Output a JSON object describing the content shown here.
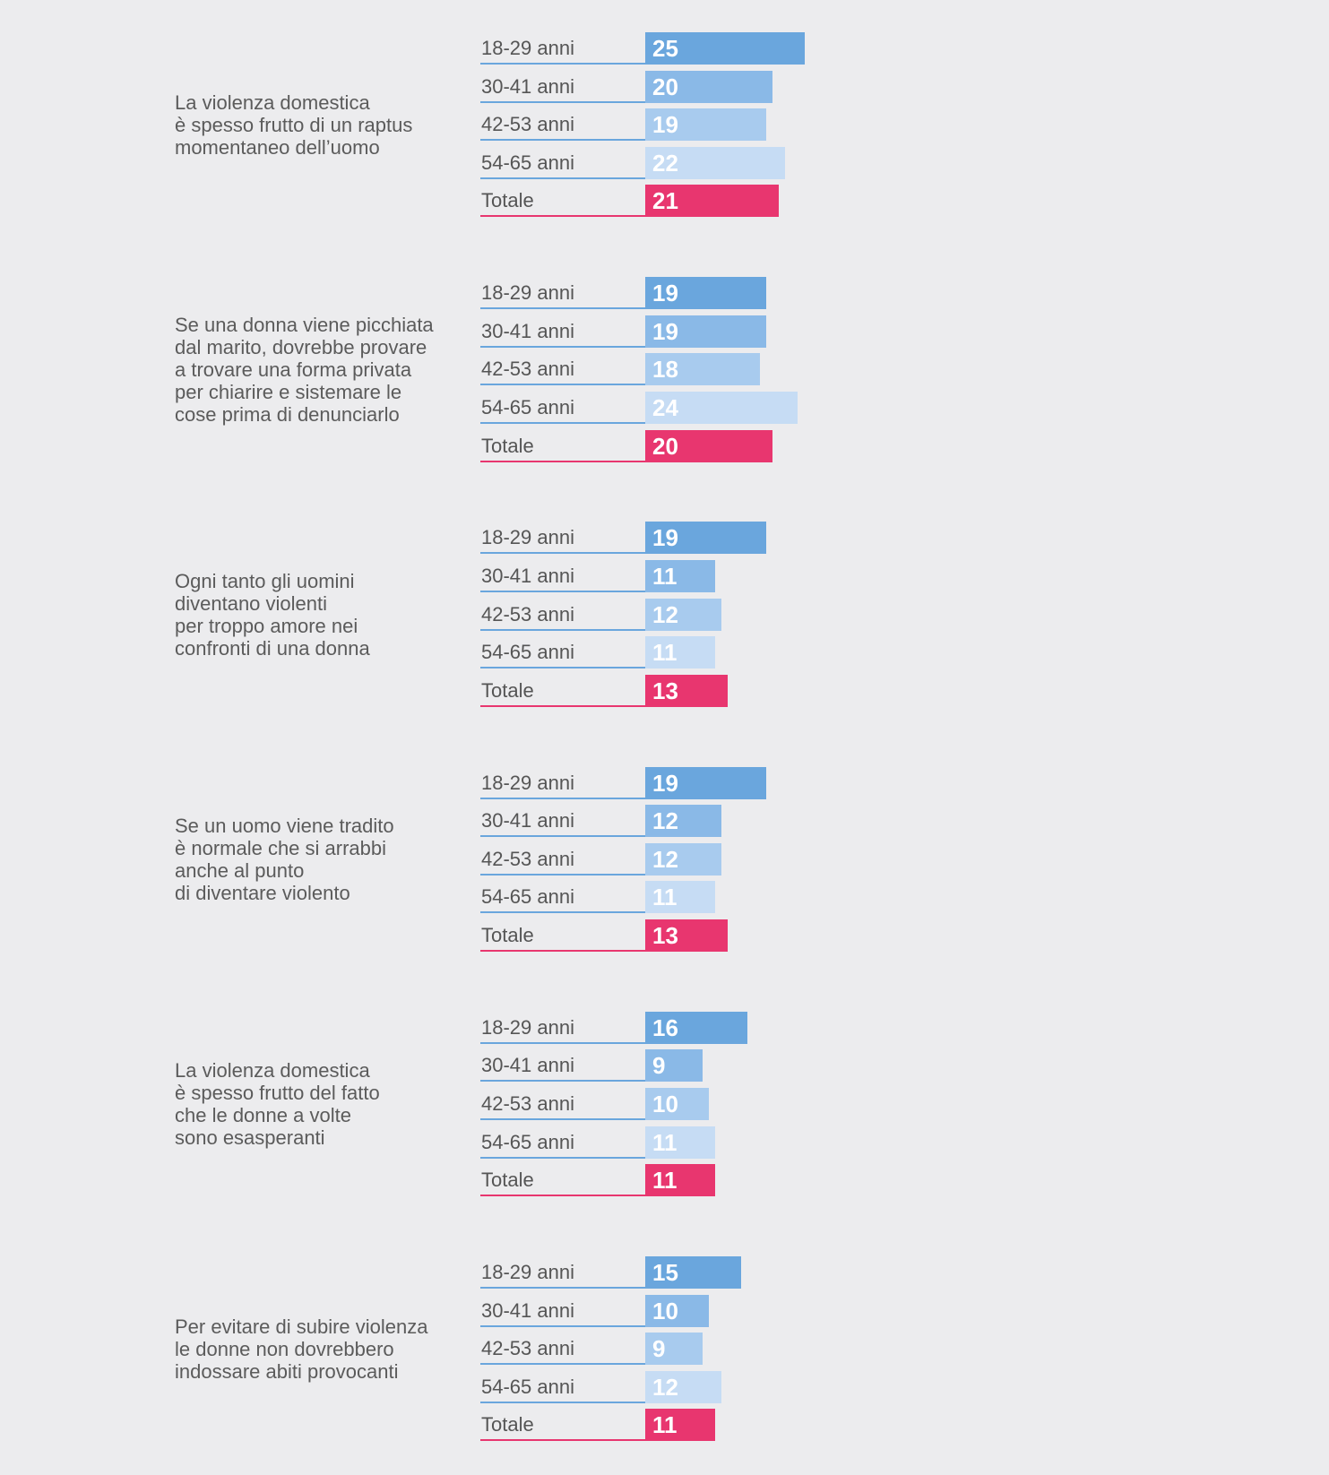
{
  "chart_data": {
    "type": "bar",
    "orientation": "horizontal",
    "categories": [
      "18-29 anni",
      "30-41 anni",
      "42-53 anni",
      "54-65 anni",
      "Totale"
    ],
    "colors": {
      "18-29 anni": "#6aa6dd",
      "30-41 anni": "#8ab9e7",
      "42-53 anni": "#a8cbee",
      "54-65 anni": "#c6dcf4",
      "Totale": "#e8366f"
    },
    "groups": [
      {
        "statement": "La violenza domestica\nè spesso frutto di un raptus\nmomentaneo dell’uomo",
        "values": [
          25,
          20,
          19,
          22,
          21
        ]
      },
      {
        "statement": "Se una donna viene picchiata\ndal marito, dovrebbe provare\na trovare una forma privata\nper chiarire e sistemare le\ncose prima di denunciarlo",
        "values": [
          19,
          19,
          18,
          24,
          20
        ]
      },
      {
        "statement": "Ogni tanto gli uomini\ndiventano violenti\nper troppo amore nei\nconfronti di una donna",
        "values": [
          19,
          11,
          12,
          11,
          13
        ]
      },
      {
        "statement": "Se un uomo viene tradito\nè normale che si arrabbi\nanche al punto\ndi diventare violento",
        "values": [
          19,
          12,
          12,
          11,
          13
        ]
      },
      {
        "statement": "La violenza domestica\nè spesso frutto del fatto\nche le donne a volte\nsono esasperanti",
        "values": [
          16,
          9,
          10,
          11,
          11
        ]
      },
      {
        "statement": "Per evitare di subire violenza\nle donne non dovrebbero\nindossare abiti provocanti",
        "values": [
          15,
          10,
          9,
          12,
          11
        ]
      }
    ]
  }
}
